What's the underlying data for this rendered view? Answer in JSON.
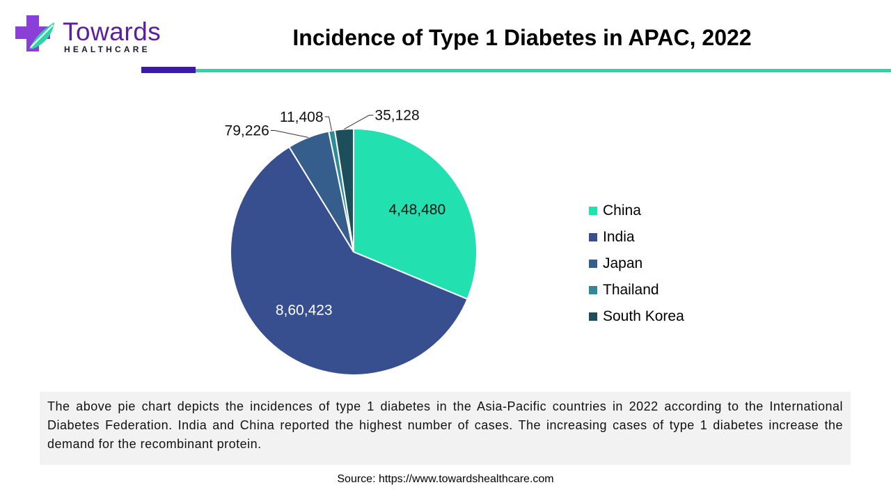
{
  "brand": {
    "name": "Towards",
    "tagline": "HEALTHCARE",
    "colors": {
      "purple": "#5b1f9e",
      "violet": "#8b3fd6",
      "teal": "#2ed3a8"
    }
  },
  "header": {
    "title": "Incidence of Type 1 Diabetes in APAC, 2022",
    "rule_colors": {
      "dark": "#3b1aa8",
      "teal": "#2ed3a8"
    }
  },
  "chart_data": {
    "type": "pie",
    "title": "",
    "categories": [
      "China",
      "India",
      "Japan",
      "Thailand",
      "South Korea"
    ],
    "values": [
      448480,
      860423,
      79226,
      11408,
      35128
    ],
    "value_labels": [
      "4,48,480",
      "8,60,423",
      "79,226",
      "11,408",
      "35,128"
    ],
    "colors": [
      "#22e0b0",
      "#374e8f",
      "#365e8c",
      "#2e8a96",
      "#1c4f5b"
    ],
    "start_angle_deg": 0,
    "direction": "clockwise",
    "legend_position": "right"
  },
  "description": "The above pie chart depicts the incidences of type 1 diabetes in the Asia-Pacific countries in 2022 according to the International Diabetes Federation. India and China reported the highest number of cases. The increasing cases of type 1 diabetes increase the demand for the recombinant protein.",
  "source": "Source: https://www.towardshealthcare.com"
}
